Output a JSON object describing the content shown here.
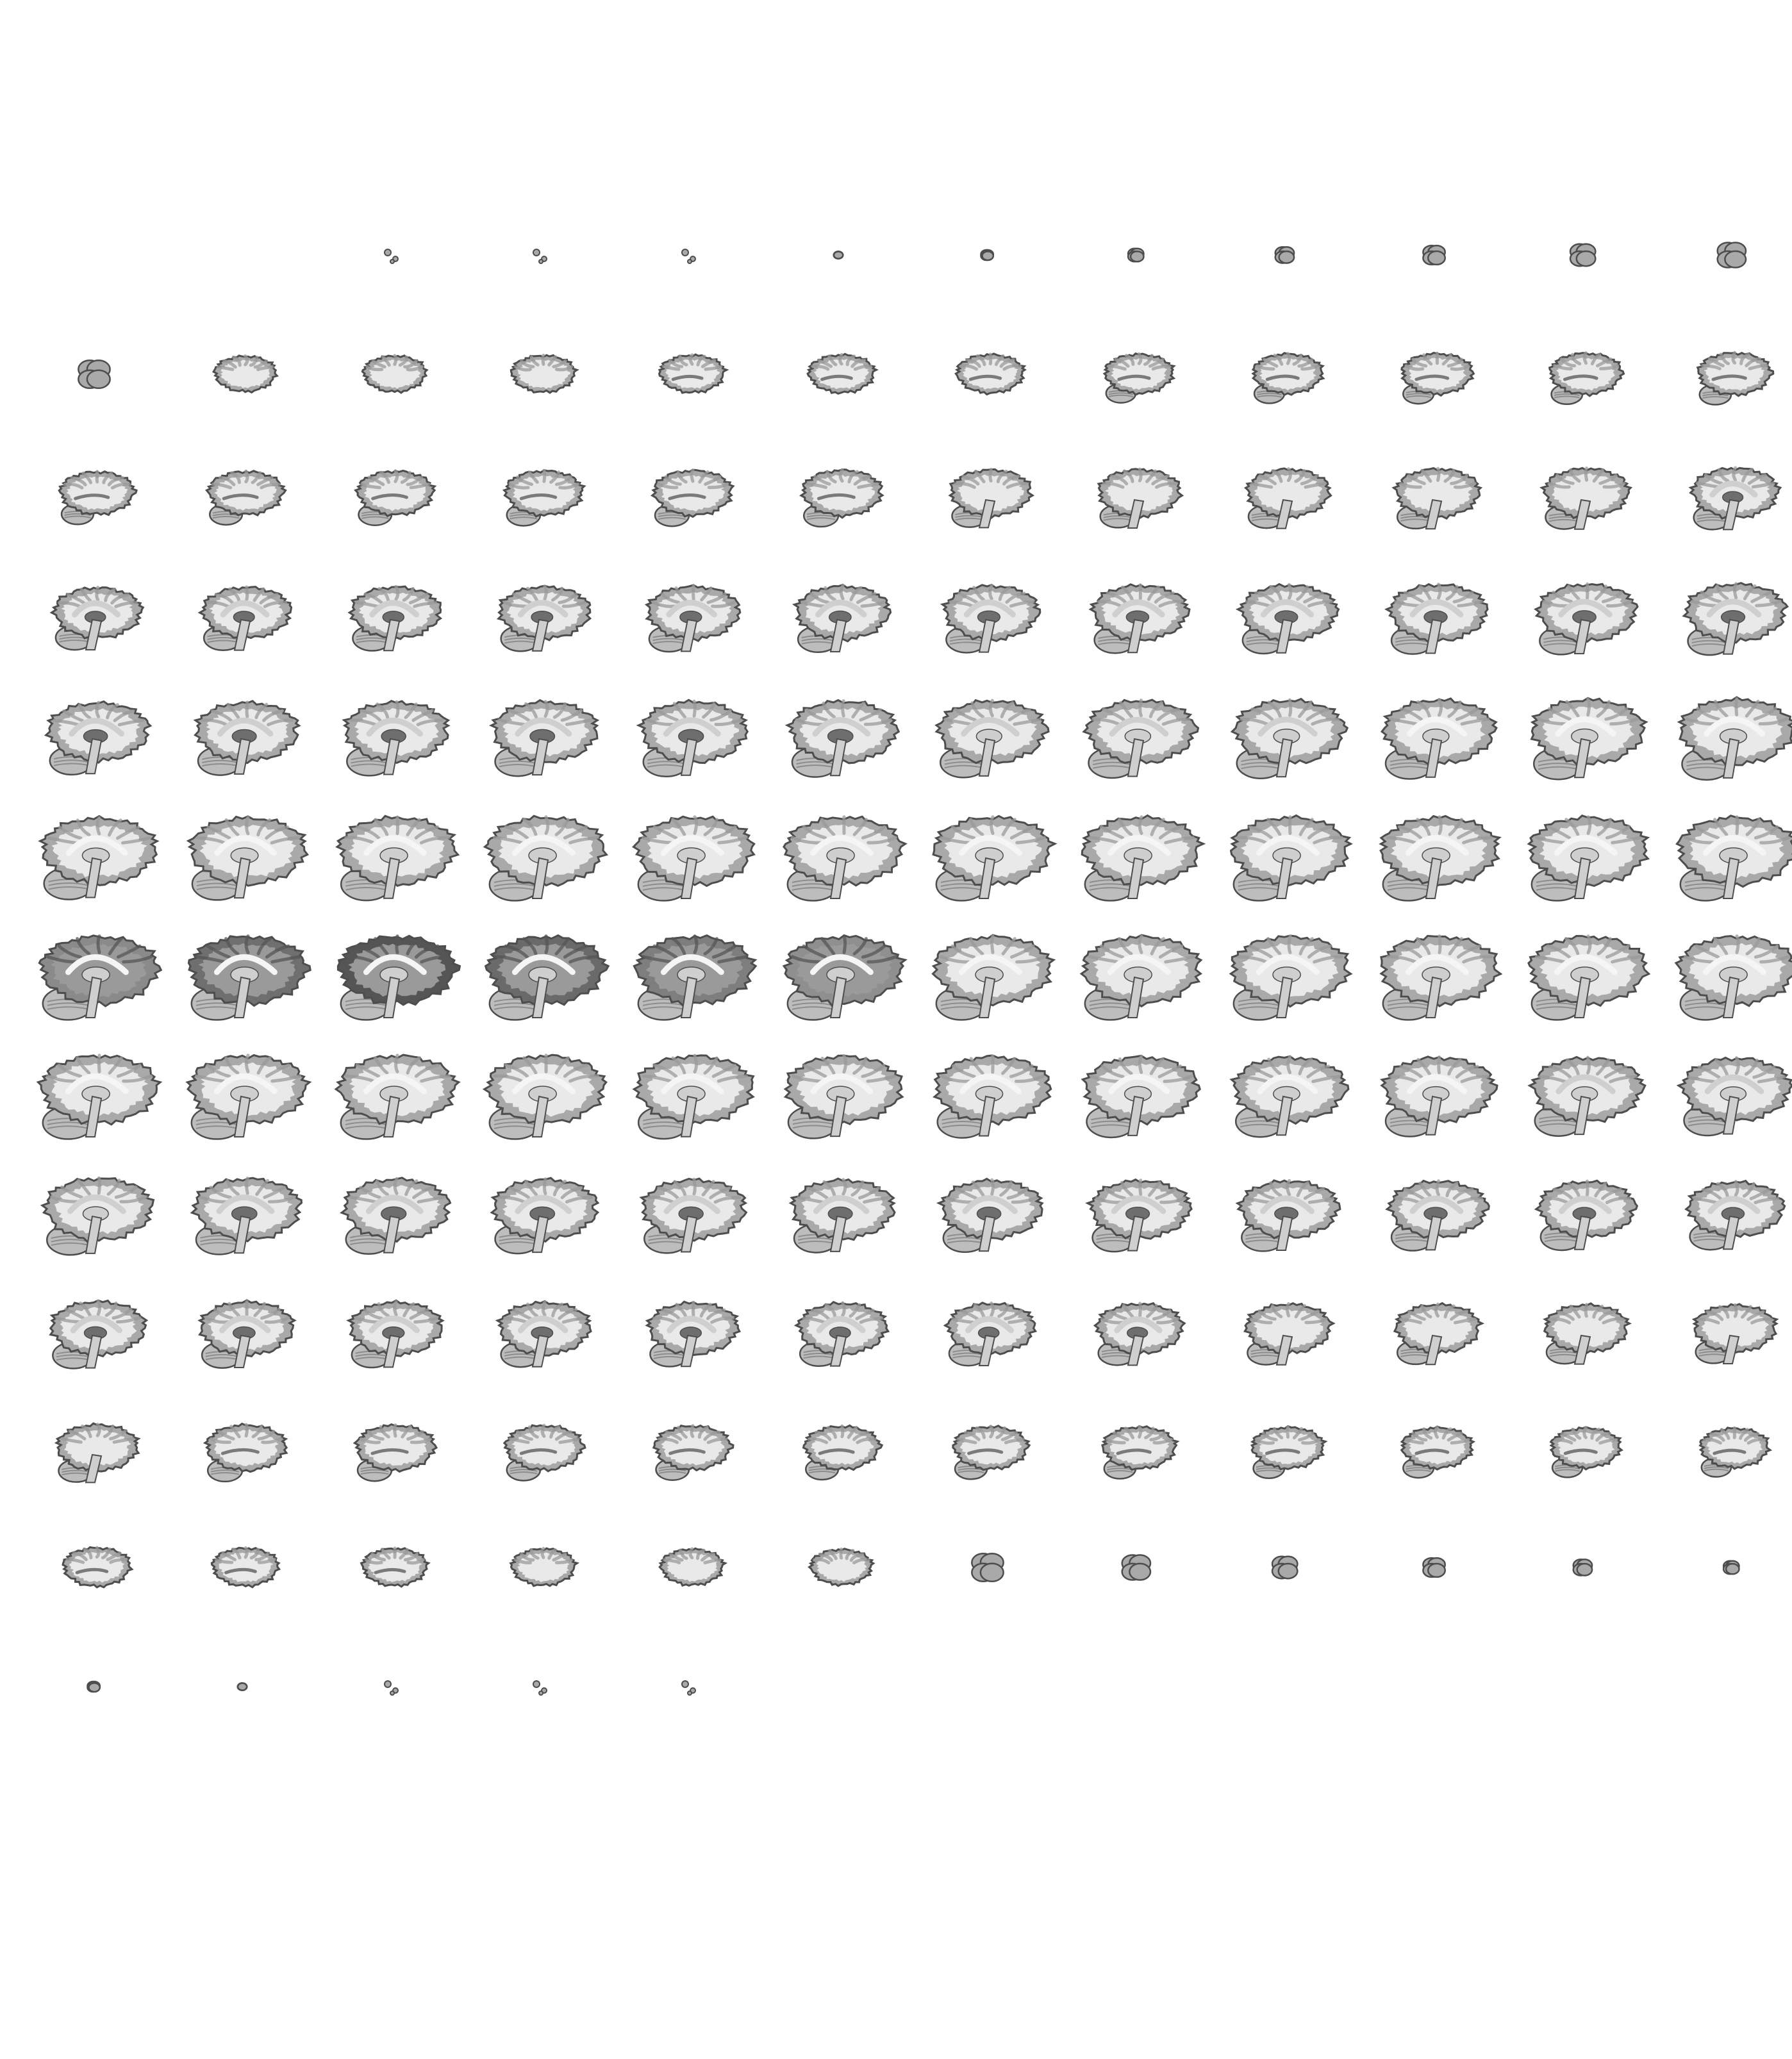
{
  "montage": {
    "description_free": true,
    "grid": {
      "columns": 12,
      "rows": 13
    },
    "slice_count": 147,
    "first_slice_column": 3,
    "background_color": "#ffffff",
    "tissue_colors": {
      "outline": "#4d4d4d",
      "gray_matter": "#a9a9a9",
      "white_matter": "#e9e9e9",
      "deep_gray": "#cfcfcf",
      "ventricle": "#6e6e6e",
      "cerebellum": "#bdbdbd"
    },
    "dark_slice_tones": [
      "#8a8a8a",
      "#6f6f6f",
      "#555555",
      "#6a6a6a",
      "#7e7e7e",
      "#8f8f8f"
    ]
  }
}
